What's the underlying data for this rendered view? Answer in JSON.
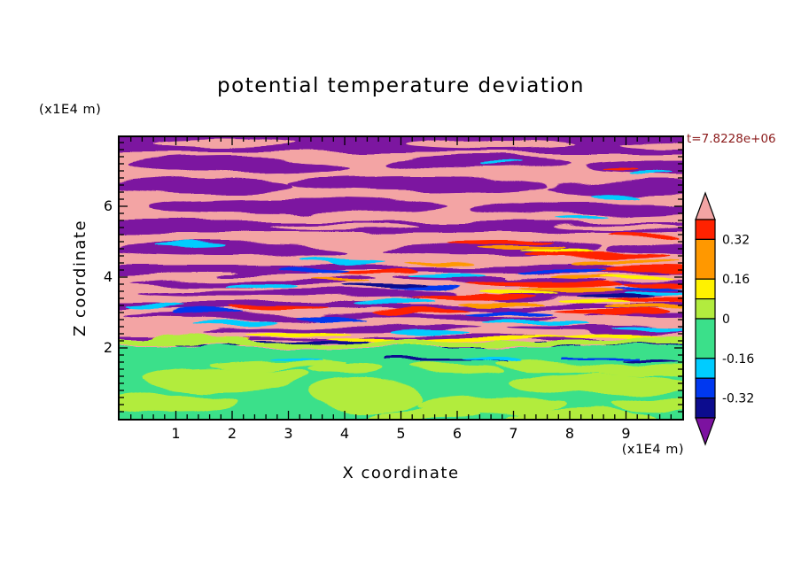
{
  "title": "potential temperature deviation",
  "time_label": "t=7.8228e+06",
  "axes": {
    "x": {
      "label": "X coordinate",
      "unit": "(x1E4 m)",
      "range": [
        0,
        10
      ],
      "minor_step": 0.2,
      "ticks": [
        {
          "value": 1,
          "label": "1"
        },
        {
          "value": 2,
          "label": "2"
        },
        {
          "value": 3,
          "label": "3"
        },
        {
          "value": 4,
          "label": "4"
        },
        {
          "value": 5,
          "label": "5"
        },
        {
          "value": 6,
          "label": "6"
        },
        {
          "value": 7,
          "label": "7"
        },
        {
          "value": 8,
          "label": "8"
        },
        {
          "value": 9,
          "label": "9"
        }
      ]
    },
    "y": {
      "label": "Z coordinate",
      "unit": "(x1E4 m)",
      "range": [
        0,
        7.95
      ],
      "minor_step": 0.2,
      "ticks": [
        {
          "value": 2,
          "label": "2"
        },
        {
          "value": 4,
          "label": "4"
        },
        {
          "value": 6,
          "label": "6"
        }
      ]
    }
  },
  "colorbar": {
    "vmax": 0.4,
    "vmin": -0.4,
    "over_color": "#F3A4A4",
    "under_color": "#7C12A0",
    "segments": [
      {
        "color": "#FF2200",
        "from": 0.4,
        "to": 0.32
      },
      {
        "color": "#FF9800",
        "from": 0.32,
        "to": 0.16
      },
      {
        "color": "#FFF200",
        "from": 0.16,
        "to": 0.08
      },
      {
        "color": "#B2EC3E",
        "from": 0.08,
        "to": 0
      },
      {
        "color": "#3BE08A",
        "from": 0,
        "to": -0.16
      },
      {
        "color": "#00CCFF",
        "from": -0.16,
        "to": -0.24
      },
      {
        "color": "#0038F0",
        "from": -0.24,
        "to": -0.32
      },
      {
        "color": "#0C0C8E",
        "from": -0.32,
        "to": -0.4
      }
    ],
    "ticks": [
      {
        "value": 0.32,
        "label": "0.32"
      },
      {
        "value": 0.16,
        "label": "0.16"
      },
      {
        "value": 0,
        "label": "0"
      },
      {
        "value": -0.16,
        "label": "-0.16"
      },
      {
        "value": -0.32,
        "label": "-0.32"
      }
    ]
  },
  "palette": {
    "pink": "#F3A4A4",
    "purple": "#7C12A0",
    "red": "#FF2200",
    "orange": "#FF9800",
    "yellow": "#FFF200",
    "chartreuse": "#B2EC3E",
    "green": "#3BE08A",
    "cyan": "#00CCFF",
    "blue": "#0038F0",
    "navy": "#0C0C8E",
    "frame": "#000000",
    "timetext": "#8B1A1A"
  },
  "chart_data": {
    "type": "heatmap",
    "title": "potential temperature deviation",
    "xlabel": "X coordinate (x1E4 m)",
    "ylabel": "Z coordinate (x1E4 m)",
    "x_range": [
      0,
      10
    ],
    "y_range": [
      0,
      8
    ],
    "annotation": "t=7.8228e+06",
    "legend_position": "right",
    "colorbar_levels": [
      0.4,
      0.32,
      0.16,
      0.08,
      0,
      -0.16,
      -0.24,
      -0.32,
      -0.4
    ],
    "colorbar_labels": [
      "0.32",
      "0.16",
      "0",
      "-0.16",
      "-0.32"
    ],
    "field_summary": [
      {
        "region": "z < 2",
        "value_range": "0 to +0.08",
        "description": "well-mixed boundary layer: green background with chartreuse (slightly positive) blobs"
      },
      {
        "region": "z = 2 interface",
        "value_range": "-0.4 to +0.16",
        "description": "sharp cap: thin yellow/chartreuse band with navy/blue strongly-negative streaks"
      },
      {
        "region": "2 < z < 4.5",
        "value_range": "beyond +/-0.4",
        "description": "fine layered wave-breaking bands: alternating pink (>0.4) and purple (<-0.4) filaments with red/orange/yellow and cyan/blue streaks, most intense mid-right"
      },
      {
        "region": "z > 4.5",
        "value_range": "beyond +/-0.4",
        "description": "broad alternating horizontal pink and purple stably-stratified layers"
      }
    ]
  }
}
